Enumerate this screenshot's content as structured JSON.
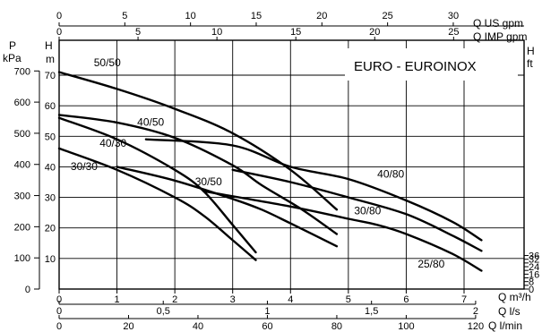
{
  "chart_data": {
    "type": "line",
    "title": "EURO - EUROINOX",
    "x_main": {
      "label": "Q m³/h",
      "range": [
        0,
        7.5
      ],
      "ticks": [
        "0",
        "1",
        "2",
        "3",
        "4",
        "5",
        "6",
        "7"
      ]
    },
    "x_ls": {
      "label": "Q l/s",
      "ticks": [
        {
          "v": 0,
          "t": "0"
        },
        {
          "v": 0.5,
          "t": "0,5"
        },
        {
          "v": 1,
          "t": "1"
        },
        {
          "v": 1.5,
          "t": "1,5"
        },
        {
          "v": 2,
          "t": "2"
        }
      ]
    },
    "x_lmin": {
      "label": "Q l/min",
      "ticks": [
        {
          "v": 0,
          "t": "0"
        },
        {
          "v": 20,
          "t": "20"
        },
        {
          "v": 40,
          "t": "40"
        },
        {
          "v": 60,
          "t": "60"
        },
        {
          "v": 80,
          "t": "80"
        },
        {
          "v": 100,
          "t": "100"
        },
        {
          "v": 120,
          "t": "120"
        }
      ]
    },
    "x_usgpm": {
      "label": "Q US gpm",
      "ticks": [
        {
          "v": 0,
          "t": "0"
        },
        {
          "v": 5,
          "t": "5"
        },
        {
          "v": 10,
          "t": "10"
        },
        {
          "v": 15,
          "t": "15"
        },
        {
          "v": 20,
          "t": "20"
        },
        {
          "v": 25,
          "t": "25"
        },
        {
          "v": 30,
          "t": "30"
        }
      ]
    },
    "x_impgpm": {
      "label": "Q IMP gpm",
      "ticks": [
        {
          "v": 0,
          "t": "0"
        },
        {
          "v": 5,
          "t": "5"
        },
        {
          "v": 10,
          "t": "10"
        },
        {
          "v": 15,
          "t": "15"
        },
        {
          "v": 20,
          "t": "20"
        },
        {
          "v": 25,
          "t": "25"
        }
      ]
    },
    "y_kpa": {
      "label_top": "P",
      "label_bottom": "kPa",
      "ticks": [
        "0",
        "100",
        "200",
        "300",
        "400",
        "500",
        "600",
        "700"
      ]
    },
    "y_m": {
      "label_top": "H",
      "label_bottom": "m",
      "range": [
        0,
        75
      ],
      "ticks": [
        "10",
        "20",
        "30",
        "40",
        "50",
        "60",
        "70"
      ]
    },
    "y_ft": {
      "label_top": "H",
      "label_bottom": "ft",
      "ticks": [
        "0",
        "8",
        "16",
        "24",
        "32",
        "36"
      ]
    },
    "series": [
      {
        "name": "50/50",
        "x": [
          0,
          1,
          2,
          3,
          4,
          4.8
        ],
        "y": [
          71,
          65.5,
          59,
          51,
          39,
          26
        ],
        "label_at": [
          0.6,
          73
        ]
      },
      {
        "name": "40/50",
        "x": [
          0,
          1,
          2,
          3,
          3.5,
          4.2,
          4.8
        ],
        "y": [
          57,
          54.5,
          49.5,
          40.5,
          34,
          26,
          18
        ],
        "label_at": [
          1.35,
          53.5
        ]
      },
      {
        "name": "40/30",
        "x": [
          0,
          1,
          2,
          2.5,
          3,
          3.4
        ],
        "y": [
          56,
          49,
          39,
          32,
          21,
          12
        ],
        "label_at": [
          0.7,
          46.5
        ]
      },
      {
        "name": "30/30",
        "x": [
          0,
          1,
          2,
          2.5,
          3,
          3.4
        ],
        "y": [
          46,
          39,
          30,
          24,
          16,
          9.5
        ],
        "label_at": [
          0.2,
          39
        ]
      },
      {
        "name": "30/50",
        "x": [
          1,
          2,
          3,
          3.5,
          4,
          4.8
        ],
        "y": [
          40,
          35.5,
          29.5,
          26,
          21.5,
          14
        ],
        "label_at": [
          2.35,
          34
        ]
      },
      {
        "name": "40/80",
        "x": [
          1.5,
          3,
          4,
          5,
          6,
          6.8,
          7.3
        ],
        "y": [
          49,
          47,
          40,
          36,
          29,
          22,
          16
        ],
        "label_at": [
          5.5,
          36.5
        ]
      },
      {
        "name": "30/80",
        "x": [
          3,
          4,
          5,
          6,
          6.8,
          7.3
        ],
        "y": [
          39,
          35,
          30,
          24.5,
          17.5,
          12.5
        ],
        "label_at": [
          5.1,
          24.5
        ]
      },
      {
        "name": "25/80",
        "x": [
          2.5,
          4,
          5,
          5.5,
          6,
          6.8,
          7.3
        ],
        "y": [
          32,
          27,
          23,
          21,
          18,
          11.5,
          6
        ],
        "label_at": [
          6.2,
          7
        ]
      }
    ],
    "grid": true
  }
}
